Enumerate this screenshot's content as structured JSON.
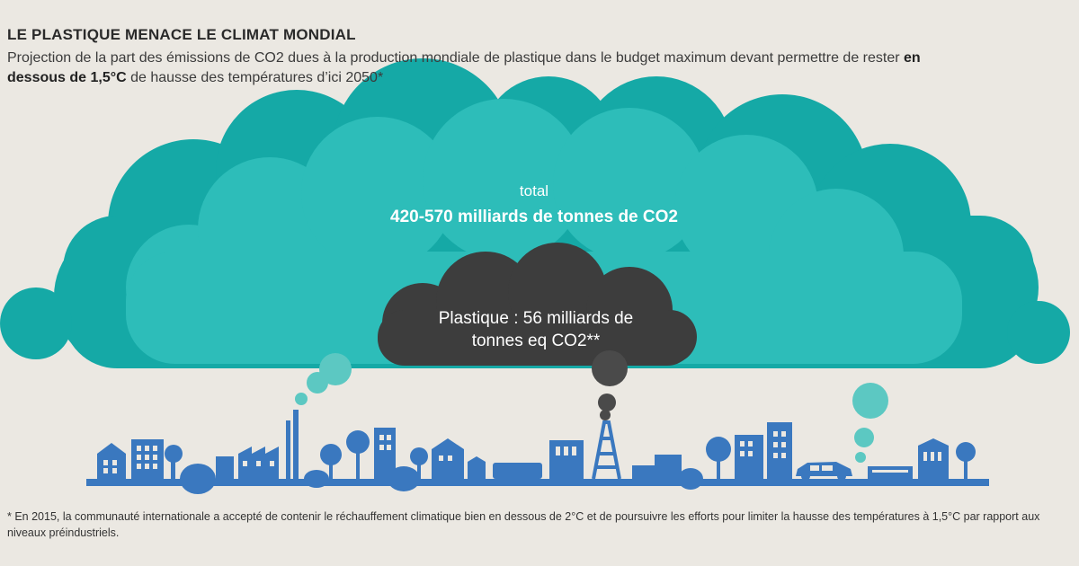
{
  "title": "LE PLASTIQUE MENACE LE CLIMAT MONDIAL",
  "subtitle": {
    "part1": "Projection de la part des émissions de CO2 dues à la production mondiale de plastique dans le budget maximum devant permettre de rester ",
    "bold": "en dessous de 1,5°C",
    "part2": " de hausse des températures d’ici 2050*"
  },
  "total_cloud": {
    "label": "total",
    "value": "420-570 milliards de tonnes de CO2"
  },
  "plastic_cloud": {
    "line1": "Plastique : 56 milliards de",
    "line2": "tonnes eq CO2**"
  },
  "footnote": "* En 2015, la communauté internationale a accepté de contenir le réchauffement climatique bien en dessous de 2°C et de poursuivre les efforts pour limiter la hausse des températures à 1,5°C par rapport aux niveaux préindustriels.",
  "colors": {
    "background": "#ebe8e2",
    "cloud_outer": "#15a9a6",
    "cloud_inner": "#2dbdb9",
    "plastic_cloud": "#3d3d3d",
    "city": "#3a78bf",
    "smoke_teal": "#5cc8c2",
    "smoke_grey": "#4a4a4a"
  }
}
